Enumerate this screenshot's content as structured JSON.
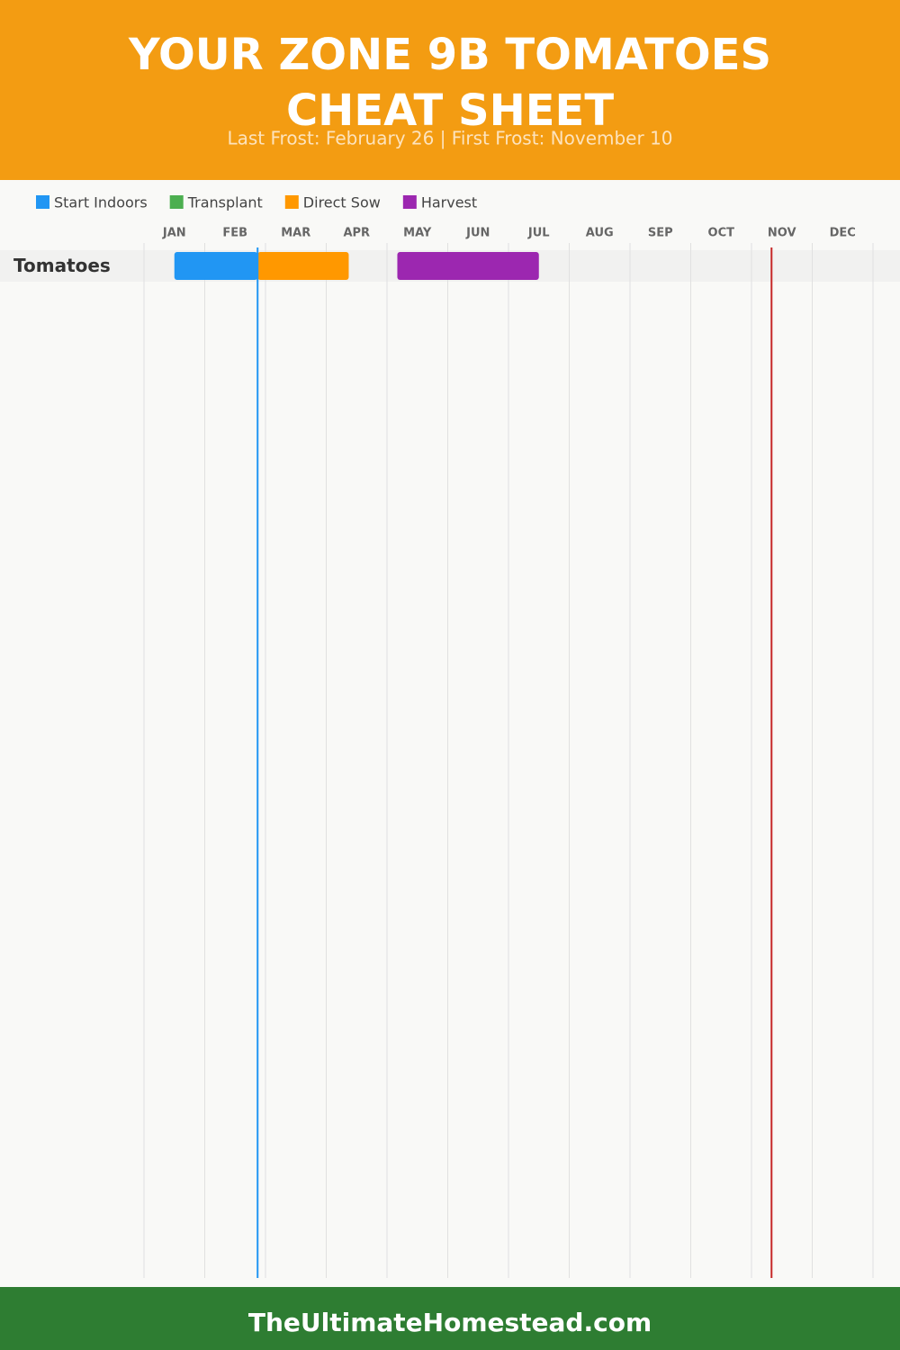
{
  "chart_data": {
    "type": "gantt",
    "title": "YOUR ZONE 9B TOMATOES CHEAT SHEET",
    "subtitle": "Last Frost: February 26 | First Frost: November 10",
    "months": [
      "JAN",
      "FEB",
      "MAR",
      "APR",
      "MAY",
      "JUN",
      "JUL",
      "AUG",
      "SEP",
      "OCT",
      "NOV",
      "DEC"
    ],
    "xlim": [
      0,
      12
    ],
    "categories": [
      "Tomatoes"
    ],
    "series": [
      {
        "name": "Start Indoors",
        "color": "#2196f3",
        "start": [
          0.5
        ],
        "end": [
          1.87
        ]
      },
      {
        "name": "Transplant",
        "color": "#4caf50",
        "start": [
          null
        ],
        "end": [
          null
        ]
      },
      {
        "name": "Direct Sow",
        "color": "#ff9800",
        "start": [
          1.87
        ],
        "end": [
          3.37
        ]
      },
      {
        "name": "Harvest",
        "color": "#9c27b0",
        "start": [
          4.17
        ],
        "end": [
          6.5
        ]
      }
    ],
    "frost_lines": [
      {
        "value": 1.87,
        "color": "#2196f3"
      },
      {
        "value": 10.33,
        "color": "#c62828"
      }
    ],
    "footer": "TheUltimateHomestead.com"
  }
}
